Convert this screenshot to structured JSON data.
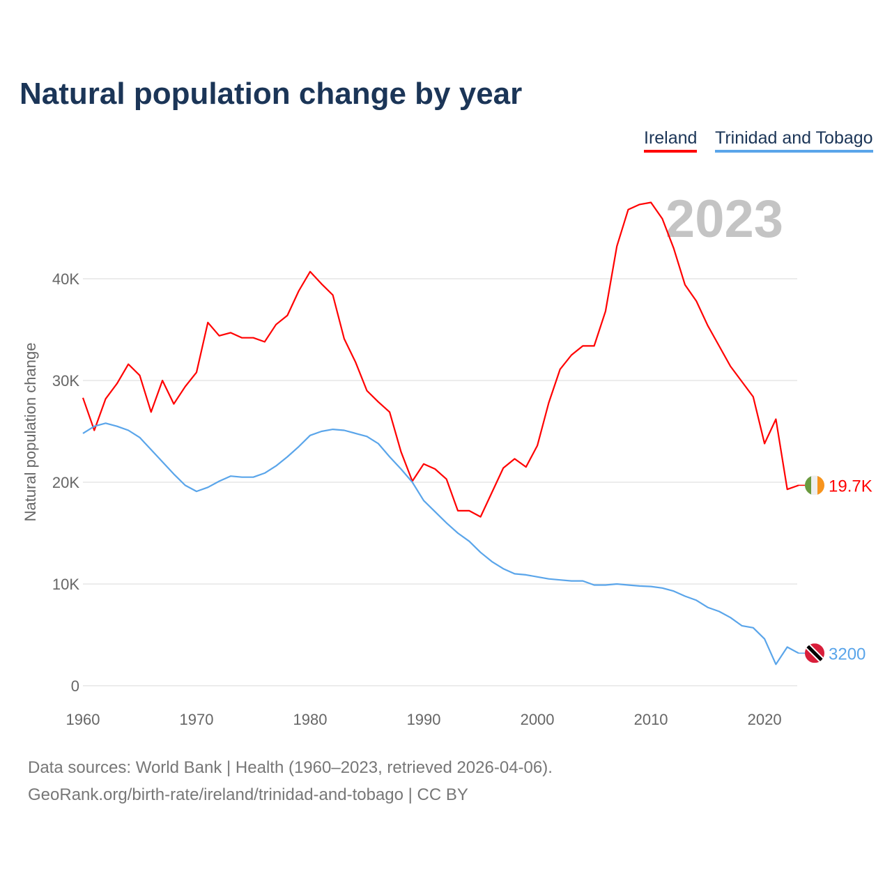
{
  "title": "Natural population change by year",
  "footer": {
    "sources": "Data sources: World Bank | Health (1960–2023, retrieved 2026-04-06).",
    "url": "GeoRank.org/birth-rate/ireland/trinidad-and-tobago | CC BY"
  },
  "chart_data": {
    "type": "line",
    "title": "Natural population change by year",
    "xlabel": "",
    "ylabel": "Natural population change",
    "year_watermark": "2023",
    "xlim": [
      1960,
      2023
    ],
    "ylim": [
      0,
      50000
    ],
    "x_ticks": [
      1960,
      1970,
      1980,
      1990,
      2000,
      2010,
      2020
    ],
    "x_tick_labels": [
      "1960",
      "1970",
      "1980",
      "1990",
      "2000",
      "2010",
      "2020"
    ],
    "y_ticks": [
      0,
      10000,
      20000,
      30000,
      40000
    ],
    "y_tick_labels": [
      "0",
      "10K",
      "20K",
      "30K",
      "40K"
    ],
    "grid": true,
    "legend_placement": "top-right",
    "x": [
      1960,
      1961,
      1962,
      1963,
      1964,
      1965,
      1966,
      1967,
      1968,
      1969,
      1970,
      1971,
      1972,
      1973,
      1974,
      1975,
      1976,
      1977,
      1978,
      1979,
      1980,
      1981,
      1982,
      1983,
      1984,
      1985,
      1986,
      1987,
      1988,
      1989,
      1990,
      1991,
      1992,
      1993,
      1994,
      1995,
      1996,
      1997,
      1998,
      1999,
      2000,
      2001,
      2002,
      2003,
      2004,
      2005,
      2006,
      2007,
      2008,
      2009,
      2010,
      2011,
      2012,
      2013,
      2014,
      2015,
      2016,
      2017,
      2018,
      2019,
      2020,
      2021,
      2022,
      2023
    ],
    "series": [
      {
        "name": "Ireland",
        "color": "#ff0000",
        "end_label": "19.7K",
        "flag": "ireland-flag",
        "values": [
          28300,
          25100,
          28200,
          29700,
          31600,
          30500,
          26900,
          30000,
          27700,
          29400,
          30800,
          35700,
          34400,
          34700,
          34200,
          34200,
          33800,
          35500,
          36400,
          38800,
          40700,
          39500,
          38400,
          34100,
          31800,
          29000,
          27900,
          26900,
          23000,
          20100,
          21800,
          21300,
          20300,
          17200,
          17200,
          16600,
          19000,
          21400,
          22300,
          21500,
          23600,
          27800,
          31100,
          32500,
          33400,
          33400,
          36800,
          43200,
          46800,
          47300,
          47500,
          45900,
          43000,
          39400,
          37800,
          35400,
          33400,
          31400,
          29900,
          28400,
          23800,
          26200,
          19300,
          19700
        ]
      },
      {
        "name": "Trinidad and Tobago",
        "color": "#5aa5ea",
        "end_label": "3200",
        "flag": "trinidad-and-tobago-flag",
        "values": [
          24800,
          25500,
          25800,
          25500,
          25100,
          24400,
          23200,
          22000,
          20800,
          19700,
          19100,
          19500,
          20100,
          20600,
          20500,
          20500,
          20900,
          21600,
          22500,
          23500,
          24600,
          25000,
          25200,
          25100,
          24800,
          24500,
          23800,
          22500,
          21300,
          20000,
          18200,
          17100,
          16000,
          15000,
          14200,
          13100,
          12200,
          11500,
          11000,
          10900,
          10700,
          10500,
          10400,
          10300,
          10300,
          9900,
          9900,
          10000,
          9900,
          9800,
          9750,
          9600,
          9300,
          8800,
          8400,
          7700,
          7300,
          6700,
          5900,
          5700,
          4600,
          2100,
          3800,
          3200
        ]
      }
    ]
  }
}
